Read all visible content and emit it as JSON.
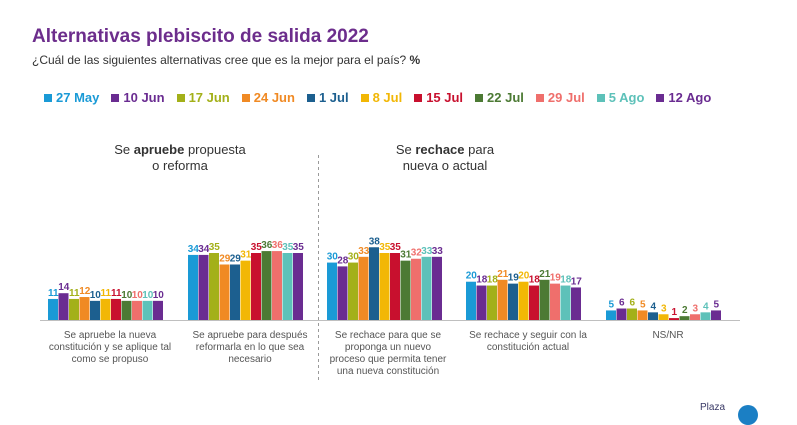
{
  "header": {
    "title": "Alternativas plebiscito de salida 2022",
    "subtitle": "¿Cuál de las siguientes alternativas cree que es la mejor para el país?",
    "unit": "%"
  },
  "groups": {
    "apruebe": {
      "prefix": "Se ",
      "bold": "apruebe",
      "suffix": " propuesta",
      "line2": "o reforma"
    },
    "rechace": {
      "prefix": "Se ",
      "bold": "rechace",
      "suffix": " para",
      "line2": "nueva o actual"
    }
  },
  "logo": {
    "text": "Plaza"
  },
  "chart_data": {
    "type": "bar",
    "categories": [
      "Se apruebe la nueva constitución y se aplique tal como se propuso",
      "Se apruebe para después reformarla en lo que sea necesario",
      "Se rechace para que se proponga un nuevo proceso que permita tener una nueva constitución",
      "Se rechace y seguir con la constitución actual",
      "NS/NR"
    ],
    "category_lines": [
      [
        "Se apruebe la nueva",
        "constitución y se aplique tal",
        "como se propuso"
      ],
      [
        "Se apruebe para después",
        "reformarla en lo que sea",
        "necesario"
      ],
      [
        "Se rechace para que se",
        "proponga un nuevo",
        "proceso que permita tener",
        "una nueva constitución"
      ],
      [
        "Se rechace y seguir con la",
        "constitución actual"
      ],
      [
        "NS/NR"
      ]
    ],
    "series": [
      {
        "name": "27 May",
        "color": "#1a9ad6",
        "values": [
          11,
          34,
          30,
          20,
          5
        ]
      },
      {
        "name": "10 Jun",
        "color": "#6a2c91",
        "values": [
          14,
          34,
          28,
          18,
          6
        ]
      },
      {
        "name": "17 Jun",
        "color": "#a3b019",
        "values": [
          11,
          35,
          30,
          18,
          6
        ]
      },
      {
        "name": "24 Jun",
        "color": "#f08a24",
        "values": [
          12,
          29,
          33,
          21,
          5
        ]
      },
      {
        "name": "1 Jul",
        "color": "#1c5f8f",
        "values": [
          10,
          29,
          38,
          19,
          4
        ]
      },
      {
        "name": "8 Jul",
        "color": "#f2b705",
        "values": [
          11,
          31,
          35,
          20,
          3
        ]
      },
      {
        "name": "15 Jul",
        "color": "#c8102e",
        "values": [
          11,
          35,
          35,
          18,
          1
        ]
      },
      {
        "name": "22 Jul",
        "color": "#4c7a34",
        "values": [
          10,
          36,
          31,
          21,
          2
        ]
      },
      {
        "name": "29 Jul",
        "color": "#ef6f6c",
        "values": [
          10,
          36,
          32,
          19,
          3
        ]
      },
      {
        "name": "5 Ago",
        "color": "#5dc1b9",
        "values": [
          10,
          35,
          33,
          18,
          4
        ]
      },
      {
        "name": "12 Ago",
        "color": "#6a2c91",
        "values": [
          10,
          35,
          33,
          17,
          5
        ]
      }
    ],
    "ylim": [
      0,
      40
    ]
  }
}
